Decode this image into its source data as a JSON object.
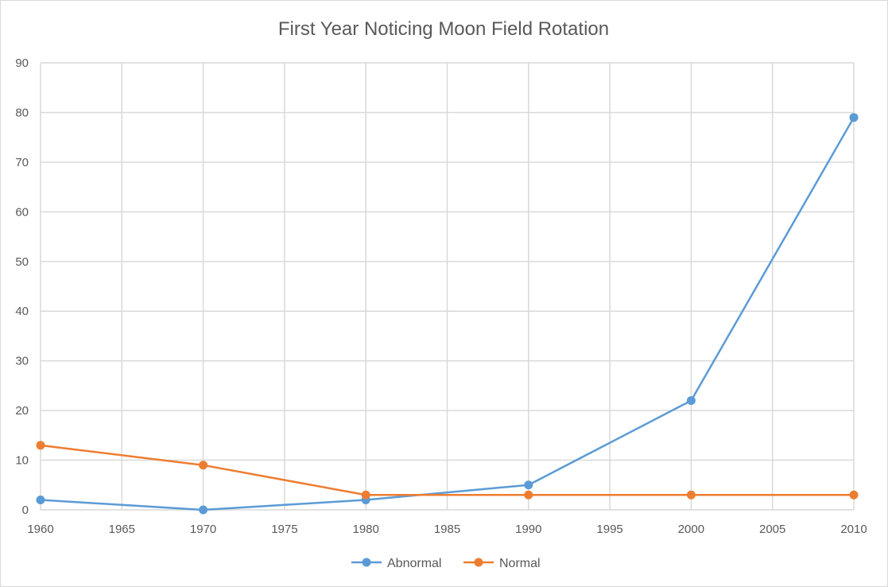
{
  "chart_data": {
    "type": "line",
    "title": "First Year Noticing Moon Field Rotation",
    "x": [
      1960,
      1970,
      1980,
      1990,
      2000,
      2010
    ],
    "xlim": [
      1960,
      2010
    ],
    "xticks": [
      "1960",
      "1965",
      "1970",
      "1975",
      "1980",
      "1985",
      "1990",
      "1995",
      "2000",
      "2005",
      "2010"
    ],
    "ylim": [
      0,
      90
    ],
    "yticks": [
      "0",
      "10",
      "20",
      "30",
      "40",
      "50",
      "60",
      "70",
      "80",
      "90"
    ],
    "grid": true,
    "legend_position": "bottom",
    "series": [
      {
        "name": "Abnormal",
        "color": "#5b9bd5",
        "values": [
          2,
          0,
          2,
          5,
          22,
          79
        ]
      },
      {
        "name": "Normal",
        "color": "#ed7d31",
        "values": [
          13,
          9,
          3,
          3,
          3,
          3
        ]
      }
    ]
  }
}
